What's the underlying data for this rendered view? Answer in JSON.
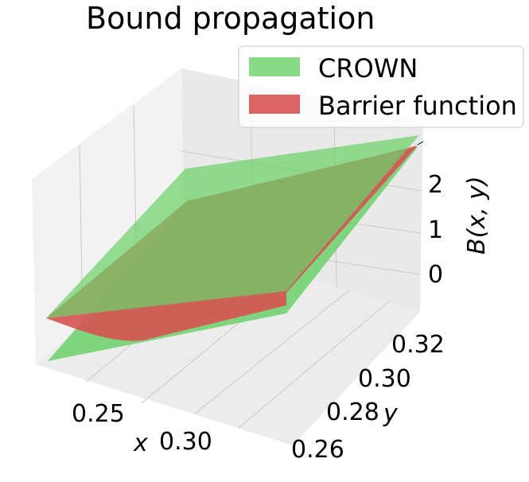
{
  "chart_data": {
    "type": "surface3d",
    "title": "Bound propagation",
    "xlabel": "x",
    "ylabel": "y",
    "zlabel": "B(x, y)",
    "x_ticks": [
      "0.25",
      "0.30"
    ],
    "y_ticks": [
      "0.26",
      "0.28",
      "0.30",
      "0.32"
    ],
    "z_ticks": [
      "0",
      "1",
      "2"
    ],
    "legend": {
      "placement": "top-right",
      "entries": [
        "CROWN",
        "Barrier function"
      ]
    },
    "grid": true,
    "series": [
      {
        "name": "CROWN",
        "color": "#6cd16a"
      },
      {
        "name": "Barrier function",
        "color": "#d65252"
      }
    ]
  }
}
